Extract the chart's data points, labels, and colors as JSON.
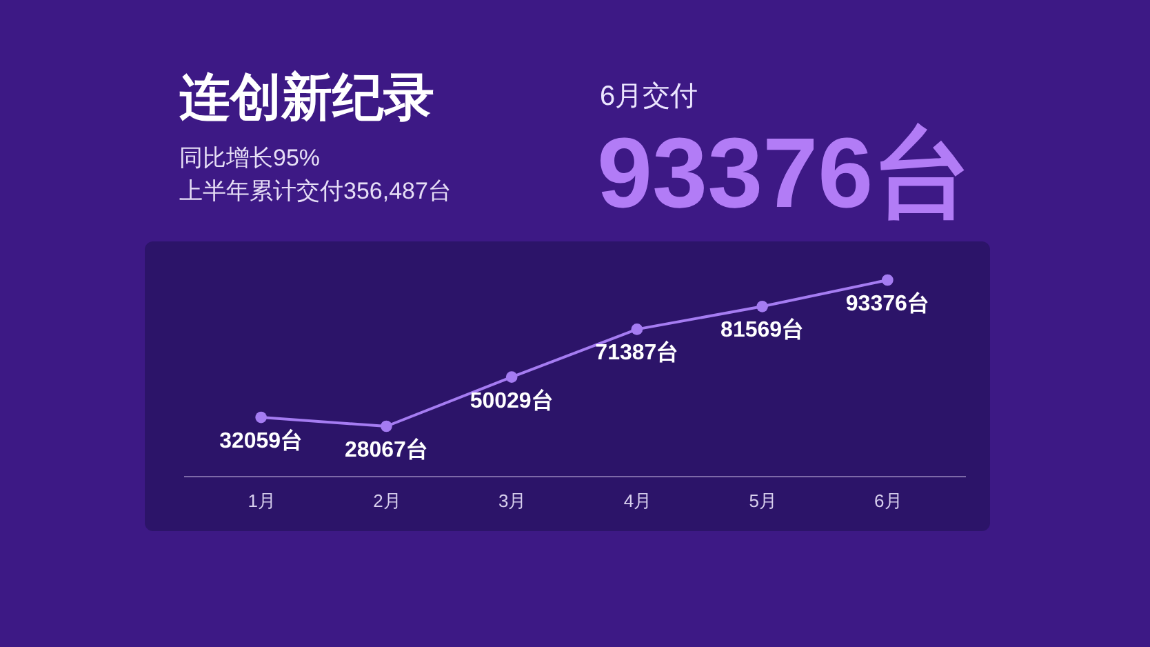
{
  "chart_data": {
    "type": "line",
    "title": "连创新纪录",
    "subtitle": "同比增长95%\n上半年累计交付356,487台",
    "annotations": [
      "6月交付",
      "93376台"
    ],
    "categories": [
      "1月",
      "2月",
      "3月",
      "4月",
      "5月",
      "6月"
    ],
    "series": [
      {
        "color": "#a57cf2",
        "values": [
          32059,
          28067,
          50029,
          71387,
          81569,
          93376
        ],
        "value_labels": [
          "32059台",
          "28067台",
          "50029台",
          "71387台",
          "81569台",
          "93376台"
        ]
      }
    ],
    "marker": "circle",
    "line_style": "solid",
    "tick_labels": "x"
  }
}
